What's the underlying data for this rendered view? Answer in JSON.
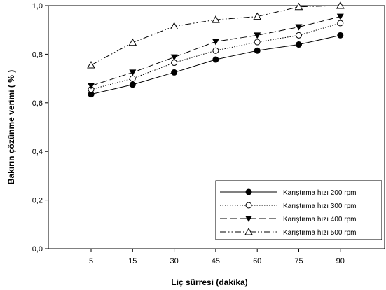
{
  "chart_data": {
    "type": "line",
    "title": "",
    "xlabel": "Liç sürresi (dakika)",
    "ylabel": "Bakırın çözünme verimi ( % )",
    "categories": [
      "5",
      "15",
      "30",
      "45",
      "60",
      "75",
      "90"
    ],
    "ylim": [
      0,
      1.0
    ],
    "y_ticks": [
      "0,0",
      "0,2",
      "0,4",
      "0,6",
      "0,8",
      "1,0"
    ],
    "grid": false,
    "legend_position": "bottom-right",
    "series": [
      {
        "name": "Karıştırma hızı 200 rpm",
        "marker": "filled-circle",
        "line_style": "solid",
        "values": [
          0.635,
          0.675,
          0.725,
          0.778,
          0.815,
          0.84,
          0.878
        ]
      },
      {
        "name": "Karıştırma hızı 300 rpm",
        "marker": "open-circle",
        "line_style": "dotted",
        "values": [
          0.655,
          0.7,
          0.765,
          0.815,
          0.85,
          0.878,
          0.928
        ]
      },
      {
        "name": "Karıştırma hızı 400 rpm",
        "marker": "filled-triangle-down",
        "line_style": "dashed",
        "values": [
          0.67,
          0.725,
          0.788,
          0.852,
          0.878,
          0.912,
          0.955
        ]
      },
      {
        "name": "Karıştırma hızı 500 rpm",
        "marker": "open-triangle-up",
        "line_style": "dash-dot-dot",
        "values": [
          0.755,
          0.848,
          0.915,
          0.942,
          0.955,
          0.995,
          1.0
        ]
      }
    ]
  }
}
